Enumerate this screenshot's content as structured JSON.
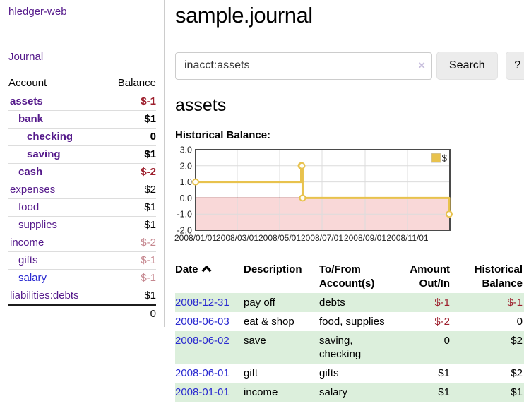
{
  "brand": "hledger-web",
  "sidebar": {
    "journal_link": "Journal",
    "accounts": {
      "headers": {
        "account": "Account",
        "balance": "Balance"
      },
      "rows": [
        {
          "name": "assets",
          "balance": "$-1",
          "depth": 1,
          "bold": true,
          "name_color": "purple",
          "balance_color": "negative"
        },
        {
          "name": "bank",
          "balance": "$1",
          "depth": 2,
          "bold": true,
          "name_color": "purple",
          "balance_color": "normal"
        },
        {
          "name": "checking",
          "balance": "0",
          "depth": 3,
          "bold": true,
          "name_color": "purple",
          "balance_color": "normal"
        },
        {
          "name": "saving",
          "balance": "$1",
          "depth": 3,
          "bold": true,
          "name_color": "purple",
          "balance_color": "normal"
        },
        {
          "name": "cash",
          "balance": "$-2",
          "depth": 2,
          "bold": true,
          "name_color": "purple",
          "balance_color": "negative"
        },
        {
          "name": "expenses",
          "balance": "$2",
          "depth": 1,
          "bold": false,
          "name_color": "purple",
          "balance_color": "normal"
        },
        {
          "name": "food",
          "balance": "$1",
          "depth": 2,
          "bold": false,
          "name_color": "purple",
          "balance_color": "normal"
        },
        {
          "name": "supplies",
          "balance": "$1",
          "depth": 2,
          "bold": false,
          "name_color": "purple",
          "balance_color": "normal"
        },
        {
          "name": "income",
          "balance": "$-2",
          "depth": 1,
          "bold": false,
          "name_color": "purple",
          "balance_color": "faded"
        },
        {
          "name": "gifts",
          "balance": "$-1",
          "depth": 2,
          "bold": false,
          "name_color": "purple",
          "balance_color": "faded"
        },
        {
          "name": "salary",
          "balance": "$-1",
          "depth": 2,
          "bold": false,
          "name_color": "blue",
          "balance_color": "faded"
        },
        {
          "name": "liabilities:debts",
          "balance": "$1",
          "depth": 1,
          "bold": false,
          "name_color": "purple",
          "balance_color": "normal"
        }
      ],
      "total": "0"
    }
  },
  "header": {
    "title": "sample.journal"
  },
  "search": {
    "value": "inacct:assets",
    "clear_icon": "×",
    "search_button": "Search",
    "help_button": "?"
  },
  "account_page": {
    "heading": "assets",
    "chart_label": "Historical Balance:"
  },
  "chart_data": {
    "type": "line",
    "step": true,
    "title": "Historical Balance:",
    "series": [
      {
        "name": "$",
        "points": [
          {
            "date": "2008-01-01",
            "value": 1
          },
          {
            "date": "2008-06-01",
            "value": 2
          },
          {
            "date": "2008-06-02",
            "value": 2
          },
          {
            "date": "2008-06-03",
            "value": 0
          },
          {
            "date": "2008-12-31",
            "value": -1
          }
        ]
      }
    ],
    "ylim": [
      -2,
      3
    ],
    "yticks": [
      {
        "value": 3,
        "label": "3.0"
      },
      {
        "value": 2,
        "label": "2.0"
      },
      {
        "value": 1,
        "label": "1.0"
      },
      {
        "value": 0,
        "label": "0.0"
      },
      {
        "value": -1,
        "label": "-1.0"
      },
      {
        "value": -2,
        "label": "-2.0"
      }
    ],
    "xticks": [
      {
        "date": "2008-01-01",
        "label": "2008/01/01"
      },
      {
        "date": "2008-03-01",
        "label": "2008/03/01"
      },
      {
        "date": "2008-05-01",
        "label": "2008/05/01"
      },
      {
        "date": "2008-07-01",
        "label": "2008/07/01"
      },
      {
        "date": "2008-09-01",
        "label": "2008/09/01"
      },
      {
        "date": "2008-11-01",
        "label": "2008/11/01"
      }
    ],
    "legend": {
      "label": "$",
      "position": "top-right"
    },
    "grid": true,
    "colors": {
      "line": "#e8c24d",
      "marker_fill": "#fffdf5",
      "negative_region": "#f9d8d8",
      "zero_line": "#8b0000",
      "grid": "#dcdcdc",
      "border": "#4a4a4a"
    }
  },
  "register": {
    "columns": [
      {
        "label": "Date",
        "align": "left",
        "sorted": "ascending"
      },
      {
        "label": "Description",
        "align": "left"
      },
      {
        "label": "To/From Account(s)",
        "align": "left"
      },
      {
        "label": "Amount Out/In",
        "align": "right"
      },
      {
        "label": "Historical Balance",
        "align": "right"
      }
    ],
    "rows": [
      {
        "date": "2008-12-31",
        "description": "pay off",
        "accounts": "debts",
        "amount": "$-1",
        "amount_negative": true,
        "balance": "$-1",
        "balance_negative": true
      },
      {
        "date": "2008-06-03",
        "description": "eat & shop",
        "accounts": "food, supplies",
        "amount": "$-2",
        "amount_negative": true,
        "balance": "0",
        "balance_negative": false
      },
      {
        "date": "2008-06-02",
        "description": "save",
        "accounts": "saving, checking",
        "amount": "0",
        "amount_negative": false,
        "balance": "$2",
        "balance_negative": false
      },
      {
        "date": "2008-06-01",
        "description": "gift",
        "accounts": "gifts",
        "amount": "$1",
        "amount_negative": false,
        "balance": "$2",
        "balance_negative": false
      },
      {
        "date": "2008-01-01",
        "description": "income",
        "accounts": "salary",
        "amount": "$1",
        "amount_negative": false,
        "balance": "$1",
        "balance_negative": false
      }
    ]
  }
}
